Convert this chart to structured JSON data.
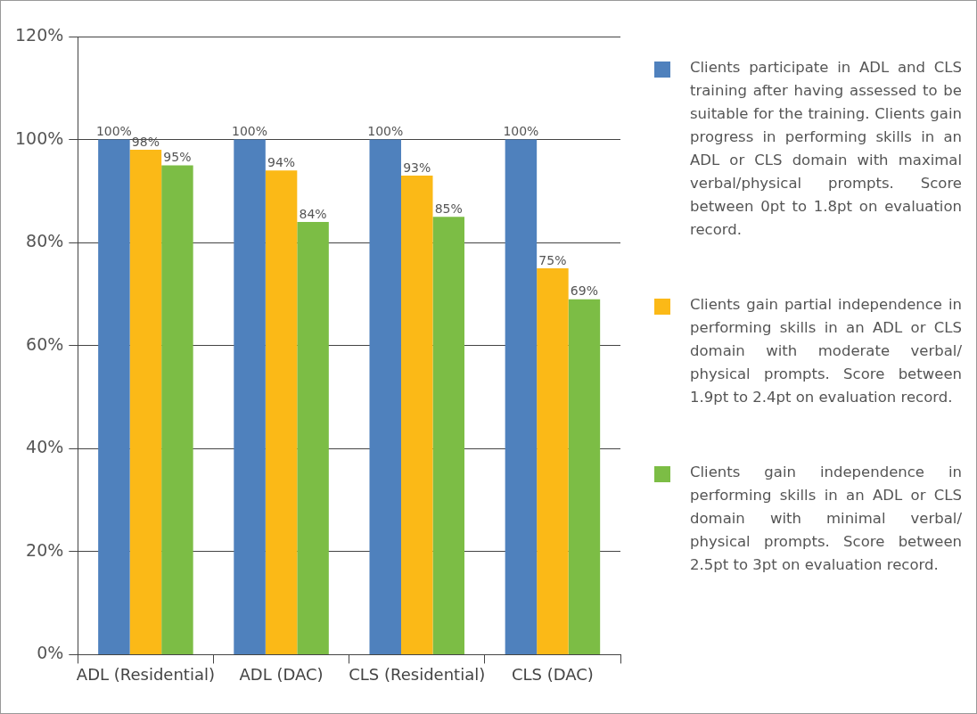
{
  "chart_data": {
    "type": "bar",
    "categories": [
      "ADL (Residential)",
      "ADL (DAC)",
      "CLS (Residential)",
      "CLS (DAC)"
    ],
    "series": [
      {
        "name": "Clients participate in ADL and CLS training after having assessed to be suitable for the training. Clients gain progress in performing skills in an ADL or CLS domain with maximal verbal/physical prompts. Score between 0pt to 1.8pt on evaluation record.",
        "color": "#4f81bd",
        "values": [
          100,
          100,
          100,
          100
        ],
        "value_labels": [
          "100%",
          "100%",
          "100%",
          "100%"
        ]
      },
      {
        "name": "Clients gain partial independence in performing skills in an ADL or CLS domain with moderate verbal/ physical prompts. Score between 1.9pt to 2.4pt on evaluation record.",
        "color": "#fbb917",
        "values": [
          98,
          94,
          93,
          75
        ],
        "value_labels": [
          "98%",
          "94%",
          "93%",
          "75%"
        ]
      },
      {
        "name": "Clients gain independence in performing skills in an ADL or CLS domain with minimal verbal/ physical prompts. Score between 2.5pt to 3pt on evaluation record.",
        "color": "#7cbd45",
        "values": [
          95,
          84,
          85,
          69
        ],
        "value_labels": [
          "95%",
          "84%",
          "85%",
          "69%"
        ]
      }
    ],
    "ylim": [
      0,
      120
    ],
    "yticks": [
      {
        "value": 0,
        "label": "0%"
      },
      {
        "value": 20,
        "label": "20%"
      },
      {
        "value": 40,
        "label": "40%"
      },
      {
        "value": 60,
        "label": "60%"
      },
      {
        "value": 80,
        "label": "80%"
      },
      {
        "value": 100,
        "label": "100%"
      },
      {
        "value": 120,
        "label": "120%"
      }
    ],
    "grid": "y",
    "legend": "right"
  }
}
